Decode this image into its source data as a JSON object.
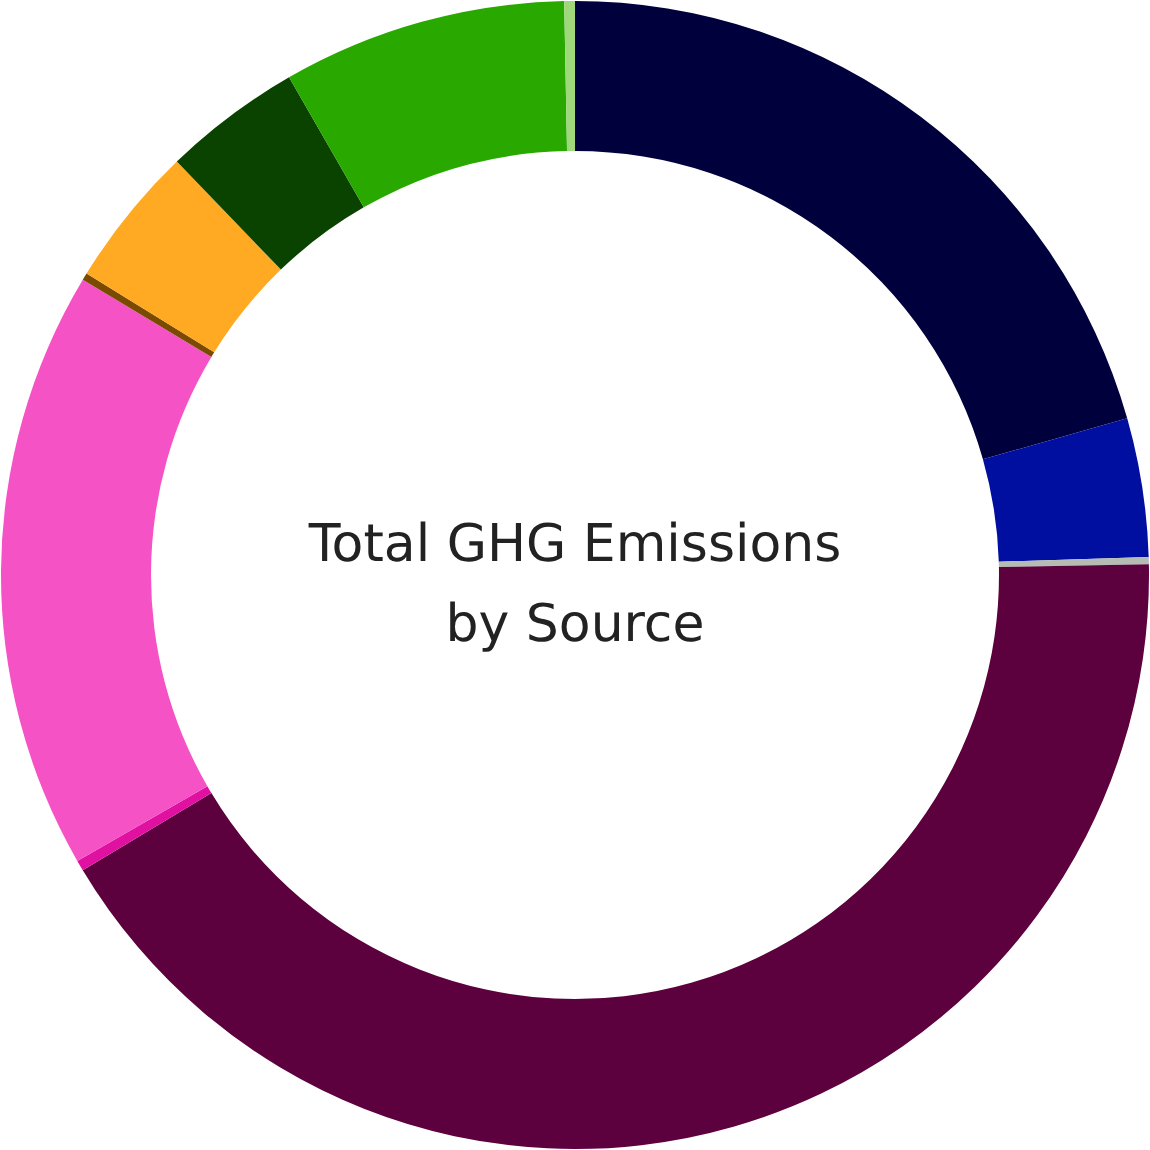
{
  "chart_data": {
    "type": "donut",
    "title": "Total GHG Emissions by Source",
    "categories": [
      null,
      null,
      null,
      null,
      null,
      null,
      null,
      null,
      null,
      null,
      null
    ],
    "values": [
      20.6,
      3.9,
      0.2,
      41.7,
      0.3,
      16.9,
      0.2,
      4.0,
      3.9,
      8.0,
      0.3
    ],
    "colors": [
      "#00003c",
      "#000f9f",
      "#b4bcb4",
      "#5c003e",
      "#e010a0",
      "#f552c6",
      "#7a4a00",
      "#ffaa22",
      "#0a4200",
      "#29a800",
      "#9ed87a"
    ]
  }
}
